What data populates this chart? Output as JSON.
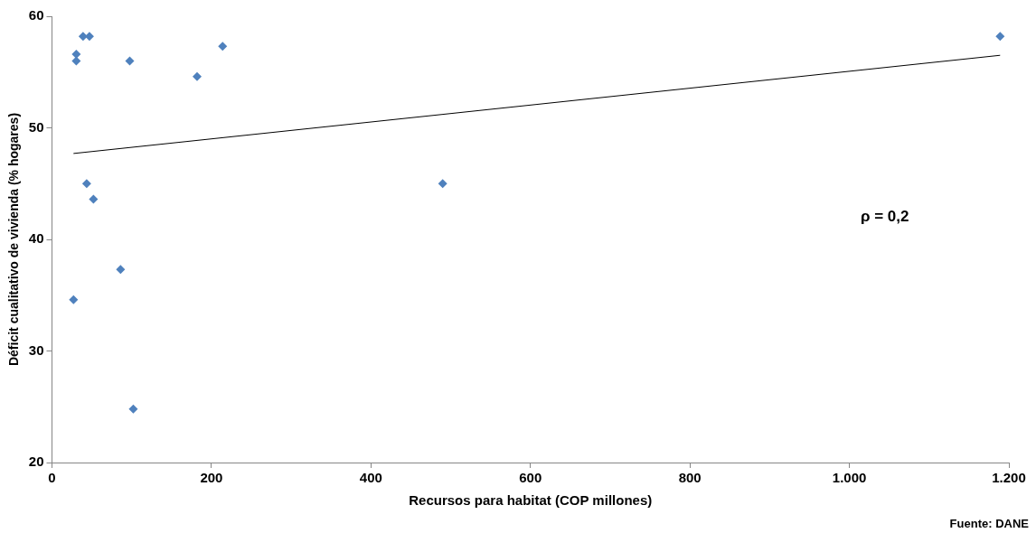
{
  "chart_data": {
    "type": "scatter",
    "xlabel": "Recursos para habitat (COP millones)",
    "ylabel": "Déficit cualitativo de vivienda (% hogares)",
    "series": [
      {
        "type": "scatter",
        "color": "#4f81bd",
        "marker": "diamond",
        "x": [
          27,
          30.5,
          30.5,
          39,
          47,
          43.5,
          52,
          86,
          97.5,
          102,
          182,
          214,
          490,
          1189
        ],
        "values": [
          34.6,
          56.6,
          56.0,
          58.2,
          58.2,
          45.0,
          43.6,
          37.3,
          56.0,
          24.8,
          54.6,
          57.3,
          45.0,
          58.2
        ]
      },
      {
        "type": "line",
        "color": "#000000",
        "marker": "none",
        "x": [
          27,
          1189
        ],
        "values": [
          47.7,
          56.5
        ]
      }
    ],
    "xlim": [
      0,
      1200
    ],
    "xticks": [
      0,
      200,
      400,
      600,
      800,
      {
        "value": 1000,
        "label": "1.000"
      },
      {
        "value": 1200,
        "label": "1.200"
      }
    ],
    "ylim": [
      20,
      60
    ],
    "yticks": [
      20,
      30,
      40,
      50,
      60
    ],
    "grid": false,
    "legend": false,
    "annotations": [
      "ρ = 0,2",
      "Fuente: DANE"
    ]
  }
}
